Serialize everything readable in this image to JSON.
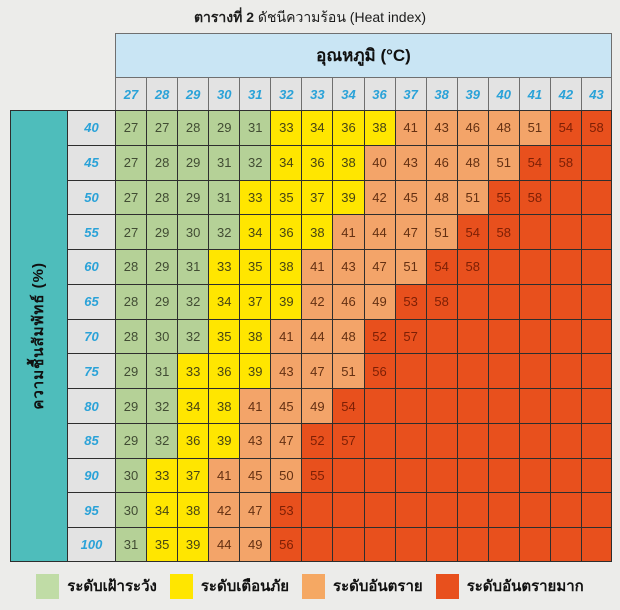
{
  "title": {
    "prefix": "ตารางที่ 2",
    "rest": "ดัชนีความร้อน (Heat index)"
  },
  "chart_data": {
    "type": "heatmap",
    "x_axis_label": "อุณหภูมิ (°C)",
    "y_axis_label": "ความชื้นสัมพัทธ์ (%)",
    "temperatures": [
      27,
      28,
      29,
      30,
      31,
      32,
      33,
      34,
      36,
      37,
      38,
      39,
      40,
      41,
      42,
      43
    ],
    "humidity_values": [
      40,
      45,
      50,
      55,
      60,
      65,
      70,
      75,
      80,
      85,
      90,
      95,
      100
    ],
    "level_colors": {
      "g": "#b5d197",
      "y": "#ffe600",
      "o": "#f3a469",
      "r": "#e8501d"
    },
    "level_names": {
      "g": "watch",
      "y": "warning",
      "o": "danger",
      "r": "extreme-danger"
    },
    "rows": [
      {
        "humidity": 40,
        "values": [
          27,
          27,
          28,
          29,
          31,
          33,
          34,
          36,
          38,
          41,
          43,
          46,
          48,
          51,
          54,
          58
        ],
        "levels": "gggggyyyyooooorr"
      },
      {
        "humidity": 45,
        "values": [
          27,
          28,
          29,
          31,
          32,
          34,
          36,
          38,
          40,
          43,
          46,
          48,
          51,
          54,
          58,
          null
        ],
        "levels": "gggggyyyooooorrr"
      },
      {
        "humidity": 50,
        "values": [
          27,
          28,
          29,
          31,
          33,
          35,
          37,
          39,
          42,
          45,
          48,
          51,
          55,
          58,
          null,
          null
        ],
        "levels": "ggggyyyyoooorrrr"
      },
      {
        "humidity": 55,
        "values": [
          27,
          29,
          30,
          32,
          34,
          36,
          38,
          41,
          44,
          47,
          51,
          54,
          58,
          null,
          null,
          null
        ],
        "levels": "ggggyyyoooorrrrr"
      },
      {
        "humidity": 60,
        "values": [
          28,
          29,
          31,
          33,
          35,
          38,
          41,
          43,
          47,
          51,
          54,
          58,
          null,
          null,
          null,
          null
        ],
        "levels": "gggyyyoooorrrrrr"
      },
      {
        "humidity": 65,
        "values": [
          28,
          29,
          32,
          34,
          37,
          39,
          42,
          46,
          49,
          53,
          58,
          null,
          null,
          null,
          null,
          null
        ],
        "levels": "gggyyyooorrrrrrr"
      },
      {
        "humidity": 70,
        "values": [
          28,
          30,
          32,
          35,
          38,
          41,
          44,
          48,
          52,
          57,
          null,
          null,
          null,
          null,
          null,
          null
        ],
        "levels": "gggyyooorrrrrrrr"
      },
      {
        "humidity": 75,
        "values": [
          29,
          31,
          33,
          36,
          39,
          43,
          47,
          51,
          56,
          null,
          null,
          null,
          null,
          null,
          null,
          null
        ],
        "levels": "ggyyyooorrrrrrrr"
      },
      {
        "humidity": 80,
        "values": [
          29,
          32,
          34,
          38,
          41,
          45,
          49,
          54,
          null,
          null,
          null,
          null,
          null,
          null,
          null,
          null
        ],
        "levels": "ggyyooorrrrrrrrr"
      },
      {
        "humidity": 85,
        "values": [
          29,
          32,
          36,
          39,
          43,
          47,
          52,
          57,
          null,
          null,
          null,
          null,
          null,
          null,
          null,
          null
        ],
        "levels": "ggyyoorrrrrrrrrr"
      },
      {
        "humidity": 90,
        "values": [
          30,
          33,
          37,
          41,
          45,
          50,
          55,
          null,
          null,
          null,
          null,
          null,
          null,
          null,
          null,
          null
        ],
        "levels": "gyyooorrrrrrrrrr"
      },
      {
        "humidity": 95,
        "values": [
          30,
          34,
          38,
          42,
          47,
          53,
          null,
          null,
          null,
          null,
          null,
          null,
          null,
          null,
          null,
          null
        ],
        "levels": "gyyoorrrrrrrrrrr"
      },
      {
        "humidity": 100,
        "values": [
          31,
          35,
          39,
          44,
          49,
          56,
          null,
          null,
          null,
          null,
          null,
          null,
          null,
          null,
          null,
          null
        ],
        "levels": "gyyoorrrrrrrrrrr"
      }
    ],
    "legend": [
      {
        "label": "ระดับเฝ้าระวัง",
        "level": "g",
        "color": "#c0dca6"
      },
      {
        "label": "ระดับเตือนภัย",
        "level": "y",
        "color": "#ffe600"
      },
      {
        "label": "ระดับอันตราย",
        "level": "o",
        "color": "#f5a863"
      },
      {
        "label": "ระดับอันตรายมาก",
        "level": "r",
        "color": "#e8501d"
      }
    ]
  }
}
